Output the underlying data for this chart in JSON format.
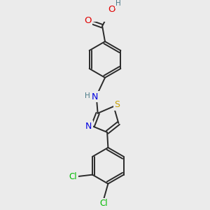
{
  "background_color": "#ebebeb",
  "bond_color": "#2a2a2a",
  "bond_width": 1.4,
  "atom_colors": {
    "O": "#e00000",
    "N": "#0000e0",
    "S": "#c8a000",
    "Cl": "#00bb00",
    "H": "#4a7a88",
    "C": "#2a2a2a"
  },
  "font_size": 8.5
}
